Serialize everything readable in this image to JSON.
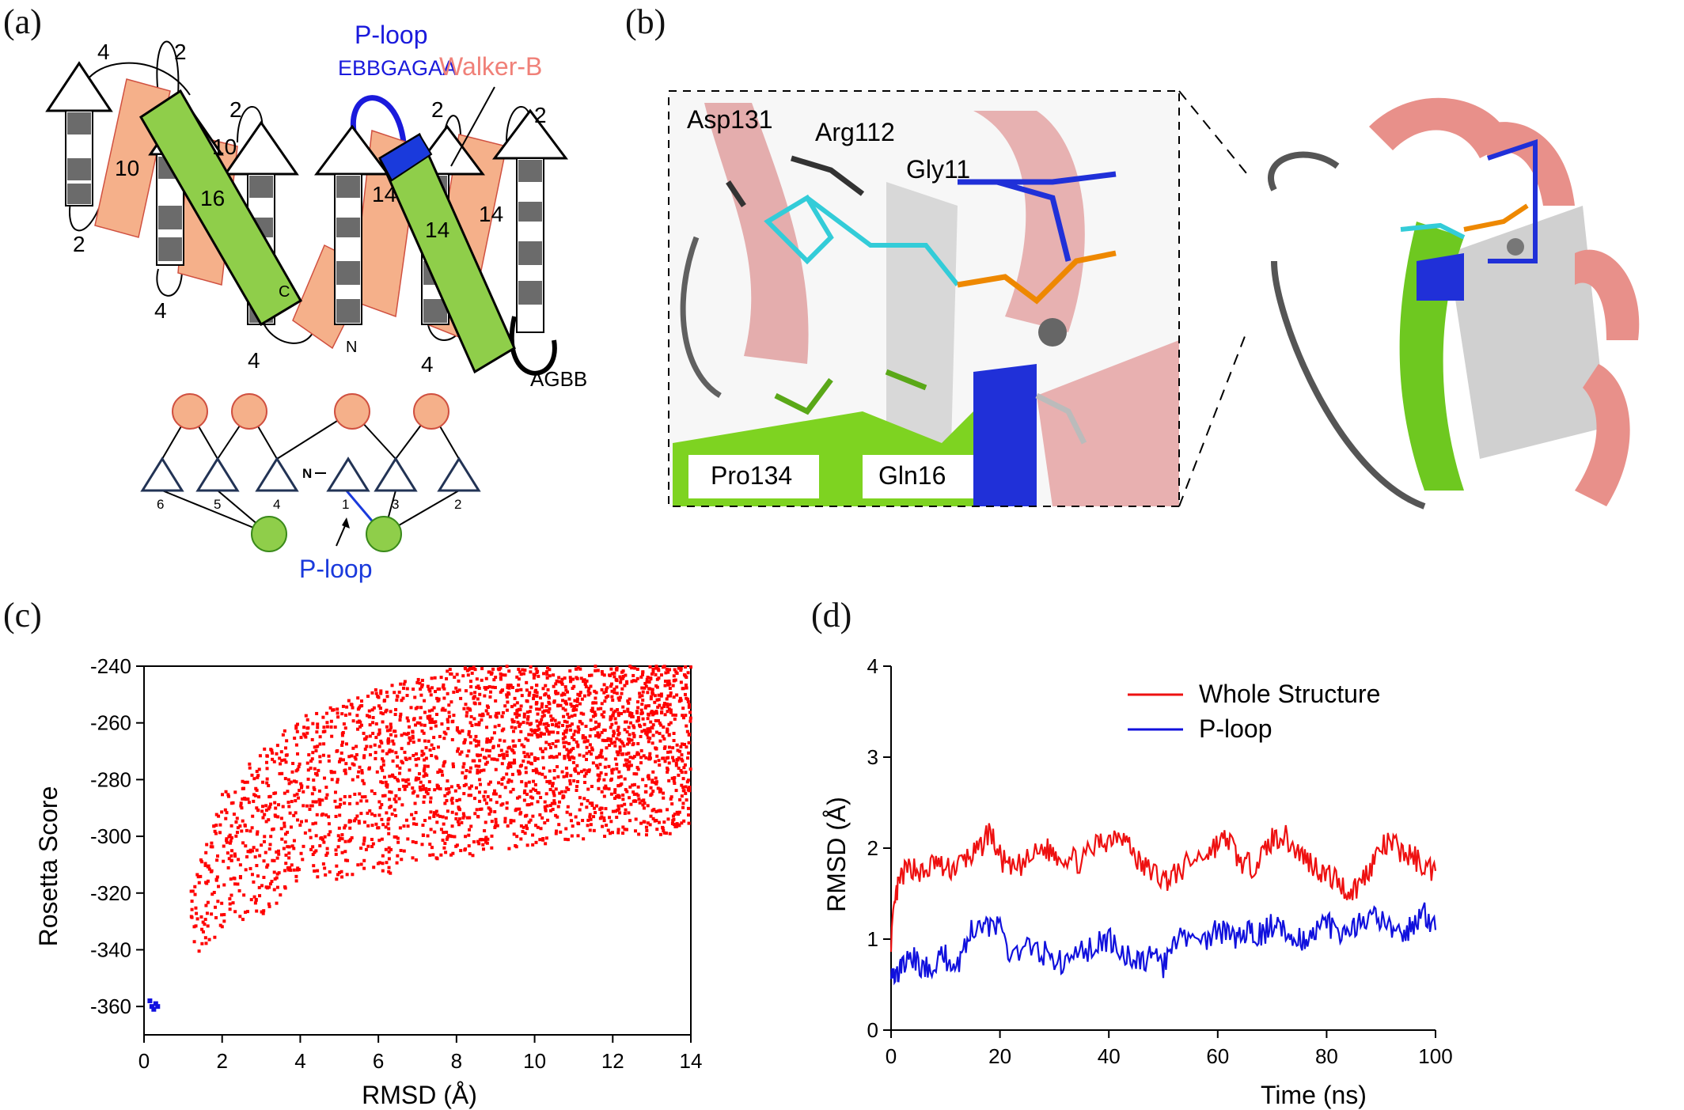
{
  "panels": {
    "a": {
      "label": "(a)",
      "ploop_title": "P-loop",
      "ploop_seq": "EBBGAGAA",
      "walkerb": "Walker-B",
      "agbb": "AGBB",
      "loop_numbers": [
        "4",
        "2",
        "2",
        "2",
        "2",
        "10",
        "10",
        "16",
        "14",
        "14",
        "14",
        "2",
        "4",
        "4",
        "4",
        "C",
        "N"
      ],
      "topology": {
        "strand_numbers": [
          "6",
          "5",
          "4",
          "1",
          "3",
          "2"
        ],
        "nterm": "N",
        "ploop_label": "P-loop"
      }
    },
    "b": {
      "label": "(b)",
      "residues": [
        "Asp131",
        "Arg112",
        "Gly11",
        "Pro134",
        "Gln16"
      ]
    },
    "c": {
      "label": "(c)",
      "colors": {
        "decoys": "#ff0000",
        "native": "#1010e0"
      },
      "chart_data": {
        "type": "scatter",
        "xlabel": "RMSD (Å)",
        "ylabel": "Rosetta Score",
        "xlim": [
          0,
          14
        ],
        "ylim": [
          -370,
          -240
        ],
        "xticks": [
          0,
          2,
          4,
          6,
          8,
          10,
          12,
          14
        ],
        "yticks": [
          -360,
          -340,
          -320,
          -300,
          -280,
          -260,
          -240
        ],
        "series": [
          {
            "color": "#ff0000",
            "note_shape": "dense cloud",
            "envelope": {
              "x": [
                1.2,
                2,
                3,
                4,
                6,
                8,
                10,
                12,
                14
              ],
              "y_low": [
                -343,
                -335,
                -328,
                -318,
                -314,
                -308,
                -303,
                -300,
                -299
              ],
              "y_high": [
                -318,
                -285,
                -270,
                -258,
                -248,
                -240,
                -240,
                -240,
                -240
              ]
            }
          },
          {
            "color": "#1010e0",
            "points": [
              [
                0.15,
                -358
              ],
              [
                0.2,
                -360
              ],
              [
                0.25,
                -361
              ],
              [
                0.3,
                -359
              ],
              [
                0.35,
                -360
              ]
            ]
          }
        ]
      }
    },
    "d": {
      "label": "(d)",
      "colors": {
        "whole": "#ee1111",
        "ploop": "#1111dd"
      },
      "chart_data": {
        "type": "line",
        "xlabel": "Time (ns)",
        "ylabel": "RMSD (Å)",
        "xlim": [
          0,
          100
        ],
        "ylim": [
          0,
          4
        ],
        "xticks": [
          0,
          20,
          40,
          60,
          80,
          100
        ],
        "yticks": [
          0,
          1,
          2,
          3,
          4
        ],
        "legend_position": "top-right",
        "series": [
          {
            "name": "Whole Structure",
            "color": "#ee1111",
            "x": [
              0,
              1,
              2,
              4,
              6,
              8,
              10,
              12,
              14,
              16,
              18,
              20,
              22,
              25,
              28,
              30,
              32,
              35,
              38,
              40,
              42,
              44,
              46,
              48,
              50,
              52,
              55,
              58,
              60,
              62,
              64,
              66,
              68,
              70,
              72,
              74,
              76,
              78,
              80,
              82,
              84,
              86,
              88,
              90,
              92,
              94,
              96,
              98,
              100
            ],
            "y": [
              1.0,
              1.5,
              1.7,
              1.8,
              1.7,
              1.85,
              1.75,
              1.8,
              1.9,
              1.95,
              2.2,
              1.9,
              1.75,
              1.85,
              2.0,
              1.95,
              1.9,
              1.85,
              2.05,
              2.1,
              2.2,
              2.0,
              1.8,
              1.75,
              1.65,
              1.7,
              1.85,
              1.95,
              2.05,
              2.1,
              1.85,
              1.8,
              1.9,
              2.1,
              2.15,
              2.0,
              1.9,
              1.8,
              1.7,
              1.65,
              1.5,
              1.6,
              1.8,
              2.0,
              2.05,
              1.95,
              1.9,
              1.8,
              1.75
            ]
          },
          {
            "name": "P-loop",
            "color": "#1111dd",
            "x": [
              0,
              1,
              2,
              4,
              6,
              8,
              10,
              12,
              14,
              16,
              18,
              20,
              22,
              25,
              28,
              30,
              32,
              35,
              38,
              40,
              42,
              44,
              46,
              48,
              50,
              52,
              55,
              58,
              60,
              62,
              64,
              66,
              68,
              70,
              72,
              74,
              76,
              78,
              80,
              82,
              84,
              86,
              88,
              90,
              92,
              94,
              96,
              98,
              100
            ],
            "y": [
              0.7,
              0.6,
              0.7,
              0.8,
              0.65,
              0.75,
              0.8,
              0.7,
              1.0,
              1.2,
              1.15,
              1.1,
              0.85,
              0.9,
              0.85,
              0.8,
              0.7,
              0.85,
              0.95,
              1.0,
              0.85,
              0.8,
              0.75,
              0.8,
              0.7,
              0.95,
              1.05,
              1.0,
              1.1,
              1.05,
              1.0,
              1.1,
              1.05,
              1.15,
              1.1,
              1.05,
              1.0,
              1.1,
              1.2,
              1.0,
              1.1,
              1.15,
              1.25,
              1.2,
              1.1,
              1.05,
              1.15,
              1.3,
              1.1
            ]
          }
        ]
      }
    }
  }
}
